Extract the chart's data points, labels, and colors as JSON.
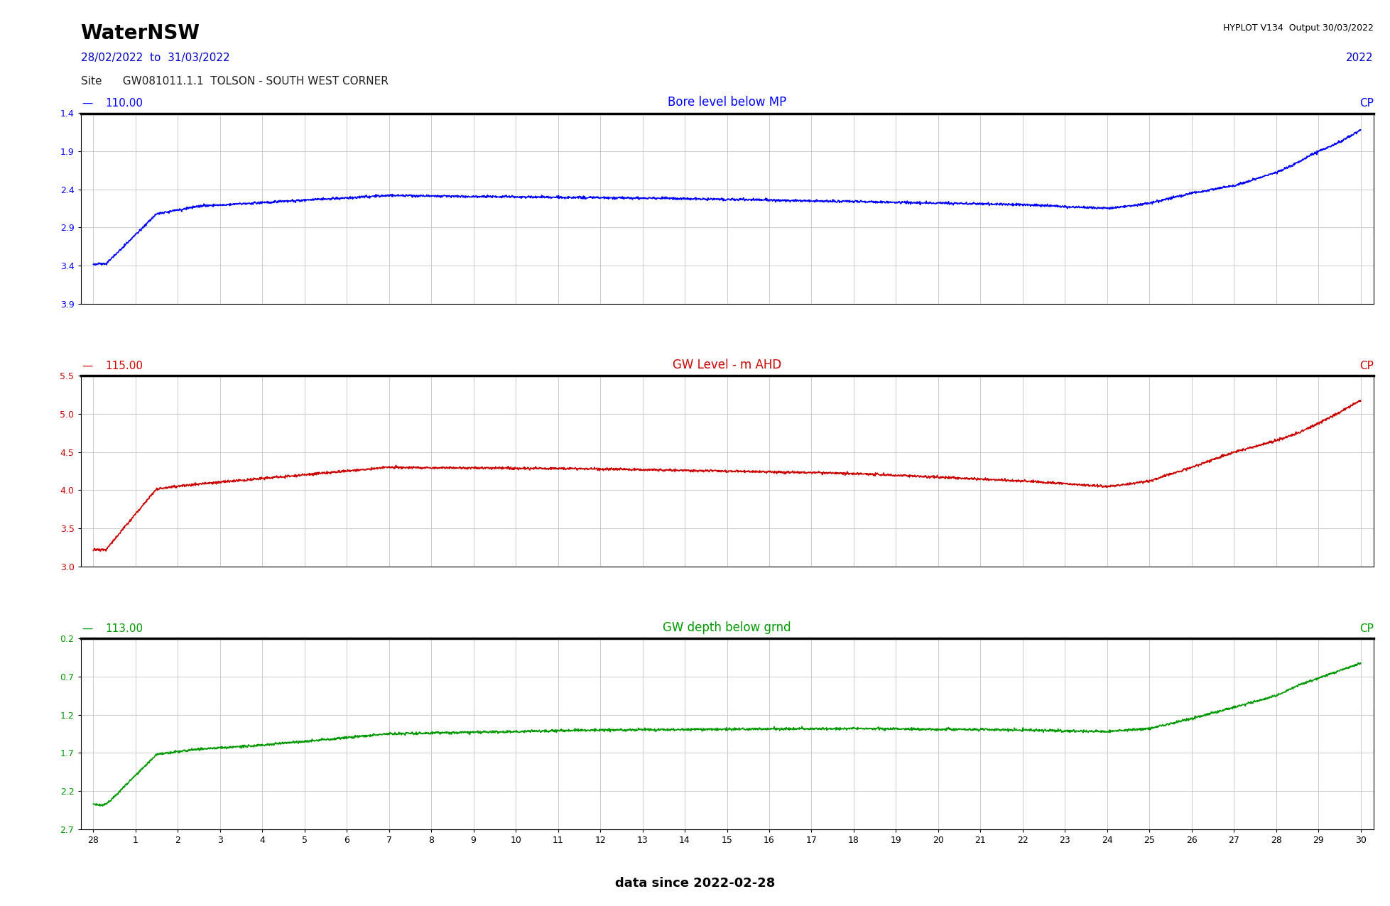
{
  "title": "WaterNSW",
  "hyplot_text": "HYPLOT V134  Output 30/03/2022",
  "date_range": "28/02/2022  to  31/03/2022",
  "year": "2022",
  "site_label": "Site      GW081011.1.1  TOLSON - SOUTH WEST CORNER",
  "footer": "data since 2022-02-28",
  "panel1": {
    "sensor_id": "110.00",
    "label": "Bore level below MP",
    "cp": "CP",
    "color": "#0000FF",
    "ylim": [
      3.9,
      1.4
    ],
    "yticks": [
      1.4,
      1.9,
      2.4,
      2.9,
      3.4,
      3.9
    ],
    "inverted": true
  },
  "panel2": {
    "sensor_id": "115.00",
    "label": "GW Level - m AHD",
    "cp": "CP",
    "color": "#CC0000",
    "ylim": [
      3.0,
      5.5
    ],
    "yticks": [
      3.0,
      3.5,
      4.0,
      4.5,
      5.0,
      5.5
    ],
    "inverted": false
  },
  "panel3": {
    "sensor_id": "113.00",
    "label": "GW depth below grnd",
    "cp": "CP",
    "color": "#009900",
    "ylim": [
      2.7,
      0.2
    ],
    "yticks": [
      0.2,
      0.7,
      1.2,
      1.7,
      2.2,
      2.7
    ],
    "inverted": true
  },
  "xtick_labels": [
    28,
    1,
    2,
    3,
    4,
    5,
    6,
    7,
    8,
    9,
    10,
    11,
    12,
    13,
    14,
    15,
    16,
    17,
    18,
    19,
    20,
    21,
    22,
    23,
    24,
    25,
    26,
    27,
    28,
    29,
    30
  ],
  "background_color": "#FFFFFF",
  "grid_color": "#CCCCCC"
}
